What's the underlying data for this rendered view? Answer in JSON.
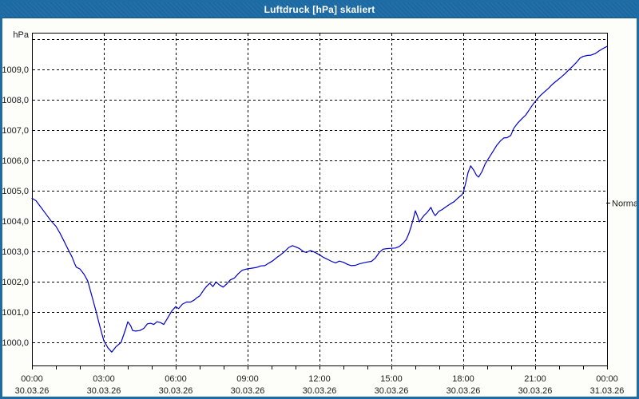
{
  "window": {
    "title": "Luftdruck [hPa] skaliert"
  },
  "colors": {
    "titlebar_bg": "#1d6ca6",
    "window_border": "#1d6ca6",
    "title_text": "#ffffff",
    "plot_bg": "#ffffff",
    "plot_border": "#000000",
    "grid": "#000000",
    "axis_text": "#1a1a1a",
    "line": "#0000cc"
  },
  "chart_data": {
    "type": "line",
    "title": "Luftdruck [hPa] skaliert",
    "grid": "dashed",
    "legend_position": "none",
    "y_axis": {
      "unit_label": "hPa",
      "range": [
        999.2,
        1010.2
      ],
      "gridline_values": [
        1000,
        1001,
        1002,
        1003,
        1004,
        1005,
        1006,
        1007,
        1008,
        1009,
        1010
      ],
      "ticks": [
        {
          "value": 1000,
          "label": "1000,0"
        },
        {
          "value": 1001,
          "label": "1001,0"
        },
        {
          "value": 1002,
          "label": "1002,0"
        },
        {
          "value": 1003,
          "label": "1003,0"
        },
        {
          "value": 1004,
          "label": "1004,0"
        },
        {
          "value": 1005,
          "label": "1005,0"
        },
        {
          "value": 1006,
          "label": "1006,0"
        },
        {
          "value": 1007,
          "label": "1007,0"
        },
        {
          "value": 1008,
          "label": "1008,0"
        },
        {
          "value": 1009,
          "label": "1009,0"
        }
      ]
    },
    "x_axis": {
      "range_hours": [
        0,
        24
      ],
      "minor_tick_interval_hours": 1,
      "major_ticks": [
        {
          "hour": 0,
          "time": "00:00",
          "date": "30.03.26"
        },
        {
          "hour": 3,
          "time": "03:00",
          "date": "30.03.26"
        },
        {
          "hour": 6,
          "time": "06:00",
          "date": "30.03.26"
        },
        {
          "hour": 9,
          "time": "09:00",
          "date": "30.03.26"
        },
        {
          "hour": 12,
          "time": "12:00",
          "date": "30.03.26"
        },
        {
          "hour": 15,
          "time": "15:00",
          "date": "30.03.26"
        },
        {
          "hour": 18,
          "time": "18:00",
          "date": "30.03.26"
        },
        {
          "hour": 21,
          "time": "21:00",
          "date": "30.03.26"
        },
        {
          "hour": 24,
          "time": "00:00",
          "date": "31.03.26"
        }
      ]
    },
    "right_axis_marker": {
      "label": "Normal",
      "value": 1004.6
    },
    "series": [
      {
        "name": "Luftdruck",
        "color": "#0000cc",
        "points": [
          [
            0.0,
            1004.75
          ],
          [
            0.17,
            1004.67
          ],
          [
            0.33,
            1004.5
          ],
          [
            0.5,
            1004.32
          ],
          [
            0.67,
            1004.14
          ],
          [
            0.8,
            1004.0
          ],
          [
            1.0,
            1003.83
          ],
          [
            1.17,
            1003.6
          ],
          [
            1.33,
            1003.35
          ],
          [
            1.5,
            1003.08
          ],
          [
            1.67,
            1002.82
          ],
          [
            1.78,
            1002.6
          ],
          [
            1.85,
            1002.48
          ],
          [
            2.0,
            1002.42
          ],
          [
            2.17,
            1002.25
          ],
          [
            2.33,
            1002.02
          ],
          [
            2.5,
            1001.53
          ],
          [
            2.67,
            1001.04
          ],
          [
            2.83,
            1000.54
          ],
          [
            3.0,
            1000.05
          ],
          [
            3.17,
            999.82
          ],
          [
            3.33,
            999.68
          ],
          [
            3.5,
            999.85
          ],
          [
            3.72,
            1000.0
          ],
          [
            3.92,
            1000.46
          ],
          [
            4.0,
            1000.68
          ],
          [
            4.12,
            1000.55
          ],
          [
            4.2,
            1000.39
          ],
          [
            4.33,
            1000.37
          ],
          [
            4.5,
            1000.39
          ],
          [
            4.67,
            1000.46
          ],
          [
            4.82,
            1000.61
          ],
          [
            4.95,
            1000.63
          ],
          [
            5.08,
            1000.59
          ],
          [
            5.22,
            1000.68
          ],
          [
            5.37,
            1000.65
          ],
          [
            5.5,
            1000.59
          ],
          [
            5.67,
            1000.81
          ],
          [
            5.83,
            1001.03
          ],
          [
            6.0,
            1001.18
          ],
          [
            6.12,
            1001.11
          ],
          [
            6.28,
            1001.26
          ],
          [
            6.45,
            1001.33
          ],
          [
            6.62,
            1001.33
          ],
          [
            6.78,
            1001.4
          ],
          [
            6.88,
            1001.47
          ],
          [
            7.0,
            1001.53
          ],
          [
            7.17,
            1001.73
          ],
          [
            7.28,
            1001.84
          ],
          [
            7.42,
            1001.95
          ],
          [
            7.55,
            1001.84
          ],
          [
            7.68,
            1001.99
          ],
          [
            7.83,
            1001.89
          ],
          [
            7.98,
            1001.82
          ],
          [
            8.12,
            1001.92
          ],
          [
            8.28,
            1002.06
          ],
          [
            8.45,
            1002.12
          ],
          [
            8.62,
            1002.27
          ],
          [
            8.78,
            1002.38
          ],
          [
            8.92,
            1002.41
          ],
          [
            9.05,
            1002.43
          ],
          [
            9.22,
            1002.45
          ],
          [
            9.38,
            1002.47
          ],
          [
            9.55,
            1002.52
          ],
          [
            9.72,
            1002.53
          ],
          [
            9.88,
            1002.61
          ],
          [
            10.05,
            1002.69
          ],
          [
            10.22,
            1002.8
          ],
          [
            10.38,
            1002.89
          ],
          [
            10.55,
            1003.0
          ],
          [
            10.72,
            1003.13
          ],
          [
            10.87,
            1003.19
          ],
          [
            11.0,
            1003.15
          ],
          [
            11.17,
            1003.09
          ],
          [
            11.32,
            1003.0
          ],
          [
            11.45,
            1002.96
          ],
          [
            11.62,
            1003.03
          ],
          [
            11.78,
            1002.98
          ],
          [
            11.97,
            1002.9
          ],
          [
            12.17,
            1002.8
          ],
          [
            12.33,
            1002.74
          ],
          [
            12.5,
            1002.67
          ],
          [
            12.67,
            1002.62
          ],
          [
            12.83,
            1002.68
          ],
          [
            13.0,
            1002.64
          ],
          [
            13.17,
            1002.57
          ],
          [
            13.33,
            1002.53
          ],
          [
            13.5,
            1002.54
          ],
          [
            13.67,
            1002.59
          ],
          [
            13.83,
            1002.62
          ],
          [
            14.0,
            1002.65
          ],
          [
            14.17,
            1002.67
          ],
          [
            14.33,
            1002.78
          ],
          [
            14.5,
            1002.97
          ],
          [
            14.65,
            1003.07
          ],
          [
            14.8,
            1003.09
          ],
          [
            15.0,
            1003.1
          ],
          [
            15.17,
            1003.11
          ],
          [
            15.33,
            1003.16
          ],
          [
            15.5,
            1003.28
          ],
          [
            15.62,
            1003.39
          ],
          [
            15.72,
            1003.57
          ],
          [
            15.83,
            1003.83
          ],
          [
            15.95,
            1004.18
          ],
          [
            16.0,
            1004.34
          ],
          [
            16.08,
            1004.18
          ],
          [
            16.17,
            1003.97
          ],
          [
            16.28,
            1004.1
          ],
          [
            16.38,
            1004.2
          ],
          [
            16.5,
            1004.29
          ],
          [
            16.65,
            1004.45
          ],
          [
            16.75,
            1004.27
          ],
          [
            16.83,
            1004.18
          ],
          [
            16.98,
            1004.32
          ],
          [
            17.12,
            1004.38
          ],
          [
            17.28,
            1004.47
          ],
          [
            17.45,
            1004.56
          ],
          [
            17.62,
            1004.64
          ],
          [
            17.78,
            1004.76
          ],
          [
            17.95,
            1004.87
          ],
          [
            18.0,
            1004.95
          ],
          [
            18.1,
            1005.25
          ],
          [
            18.2,
            1005.6
          ],
          [
            18.31,
            1005.82
          ],
          [
            18.45,
            1005.66
          ],
          [
            18.55,
            1005.51
          ],
          [
            18.64,
            1005.45
          ],
          [
            18.78,
            1005.63
          ],
          [
            18.91,
            1005.88
          ],
          [
            19.06,
            1006.07
          ],
          [
            19.22,
            1006.27
          ],
          [
            19.39,
            1006.49
          ],
          [
            19.56,
            1006.65
          ],
          [
            19.69,
            1006.74
          ],
          [
            19.83,
            1006.75
          ],
          [
            19.98,
            1006.82
          ],
          [
            20.11,
            1007.06
          ],
          [
            20.28,
            1007.24
          ],
          [
            20.44,
            1007.37
          ],
          [
            20.61,
            1007.5
          ],
          [
            20.78,
            1007.7
          ],
          [
            20.91,
            1007.85
          ],
          [
            21.06,
            1008.0
          ],
          [
            21.22,
            1008.14
          ],
          [
            21.39,
            1008.26
          ],
          [
            21.56,
            1008.38
          ],
          [
            21.72,
            1008.51
          ],
          [
            21.89,
            1008.62
          ],
          [
            22.06,
            1008.73
          ],
          [
            22.22,
            1008.84
          ],
          [
            22.39,
            1008.97
          ],
          [
            22.56,
            1009.1
          ],
          [
            22.72,
            1009.23
          ],
          [
            22.87,
            1009.37
          ],
          [
            23.0,
            1009.43
          ],
          [
            23.17,
            1009.46
          ],
          [
            23.33,
            1009.47
          ],
          [
            23.5,
            1009.52
          ],
          [
            23.67,
            1009.61
          ],
          [
            23.83,
            1009.69
          ],
          [
            24.0,
            1009.76
          ]
        ]
      }
    ]
  }
}
